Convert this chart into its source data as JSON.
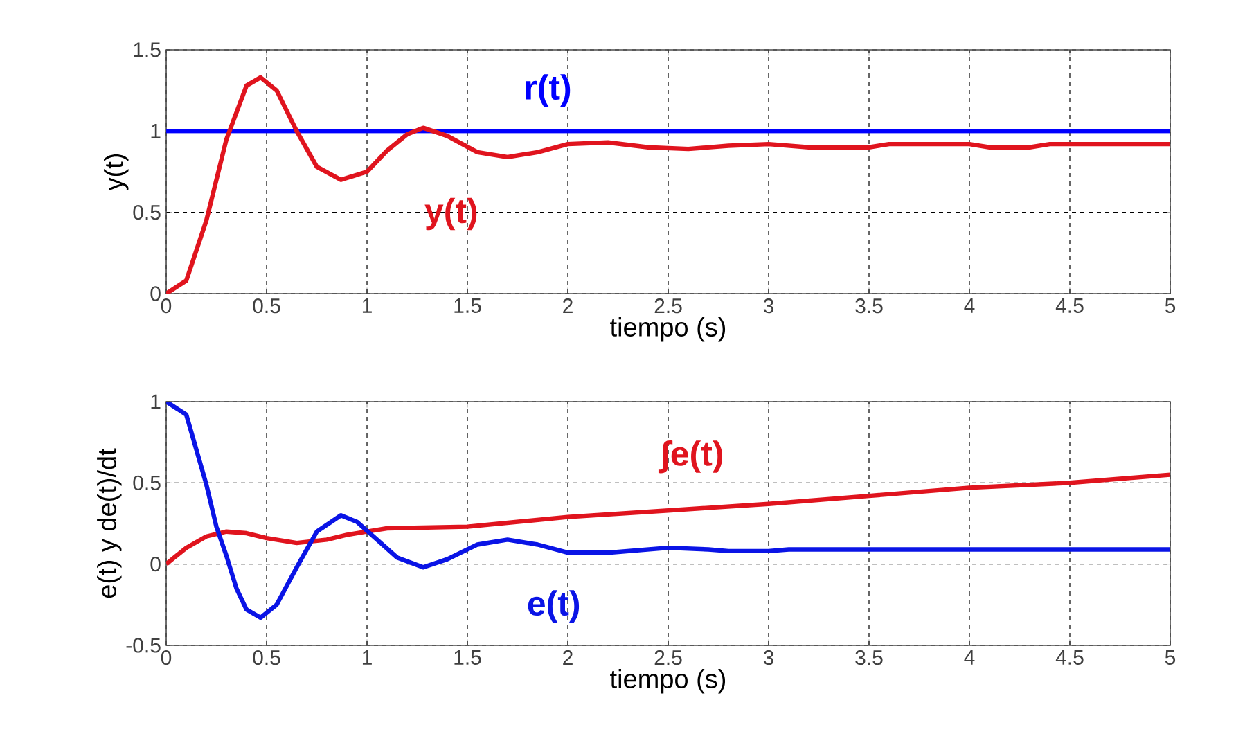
{
  "chart_data": [
    {
      "type": "line",
      "xlabel": "tiempo (s)",
      "ylabel": "y(t)",
      "xlim": [
        0,
        5
      ],
      "xticks": [
        0,
        0.5,
        1,
        1.5,
        2,
        2.5,
        3,
        3.5,
        4,
        4.5,
        5
      ],
      "ylim": [
        0,
        1.5
      ],
      "yticks": [
        0,
        0.5,
        1,
        1.5
      ],
      "grid": true,
      "series": [
        {
          "name": "r(t)",
          "color": "#0000ff",
          "x": [
            0,
            5
          ],
          "values": [
            1,
            1
          ]
        },
        {
          "name": "y(t)",
          "color": "#e0141e",
          "x": [
            0,
            0.1,
            0.2,
            0.3,
            0.4,
            0.47,
            0.55,
            0.65,
            0.75,
            0.87,
            1.0,
            1.1,
            1.2,
            1.28,
            1.4,
            1.55,
            1.7,
            1.85,
            2.0,
            2.2,
            2.4,
            2.6,
            2.8,
            3.0,
            3.2,
            3.5,
            3.6,
            4.0,
            4.1,
            4.3,
            4.4,
            5
          ],
          "values": [
            0,
            0.08,
            0.45,
            0.95,
            1.28,
            1.33,
            1.25,
            1.0,
            0.78,
            0.7,
            0.75,
            0.88,
            0.98,
            1.02,
            0.97,
            0.87,
            0.84,
            0.87,
            0.92,
            0.93,
            0.9,
            0.89,
            0.91,
            0.92,
            0.9,
            0.9,
            0.92,
            0.92,
            0.9,
            0.9,
            0.92,
            0.92
          ]
        }
      ]
    },
    {
      "type": "line",
      "xlabel": "tiempo (s)",
      "ylabel": "e(t) y de(t)/dt",
      "xlim": [
        0,
        5
      ],
      "xticks": [
        0,
        0.5,
        1,
        1.5,
        2,
        2.5,
        3,
        3.5,
        4,
        4.5,
        5
      ],
      "ylim": [
        -0.5,
        1
      ],
      "yticks": [
        -0.5,
        0,
        0.5,
        1
      ],
      "grid": true,
      "series": [
        {
          "name": "∫e(t)",
          "color": "#e0141e",
          "x": [
            0,
            0.1,
            0.2,
            0.3,
            0.4,
            0.5,
            0.65,
            0.8,
            0.9,
            1.0,
            1.1,
            1.5,
            2.0,
            2.5,
            3.0,
            3.5,
            4.0,
            4.5,
            5
          ],
          "values": [
            0,
            0.1,
            0.17,
            0.2,
            0.19,
            0.16,
            0.13,
            0.15,
            0.18,
            0.2,
            0.22,
            0.23,
            0.29,
            0.33,
            0.37,
            0.42,
            0.47,
            0.5,
            0.55
          ]
        },
        {
          "name": "e(t)",
          "color": "#0a14e6",
          "x": [
            0,
            0.1,
            0.2,
            0.25,
            0.3,
            0.35,
            0.4,
            0.47,
            0.55,
            0.65,
            0.75,
            0.87,
            0.95,
            1.05,
            1.15,
            1.28,
            1.4,
            1.55,
            1.7,
            1.85,
            2.0,
            2.2,
            2.5,
            2.7,
            2.8,
            3.0,
            3.1,
            5
          ],
          "values": [
            1,
            0.92,
            0.49,
            0.23,
            0.05,
            -0.15,
            -0.28,
            -0.33,
            -0.25,
            -0.02,
            0.2,
            0.3,
            0.26,
            0.15,
            0.04,
            -0.02,
            0.03,
            0.12,
            0.15,
            0.12,
            0.07,
            0.07,
            0.1,
            0.09,
            0.08,
            0.08,
            0.09,
            0.09
          ]
        }
      ]
    }
  ]
}
